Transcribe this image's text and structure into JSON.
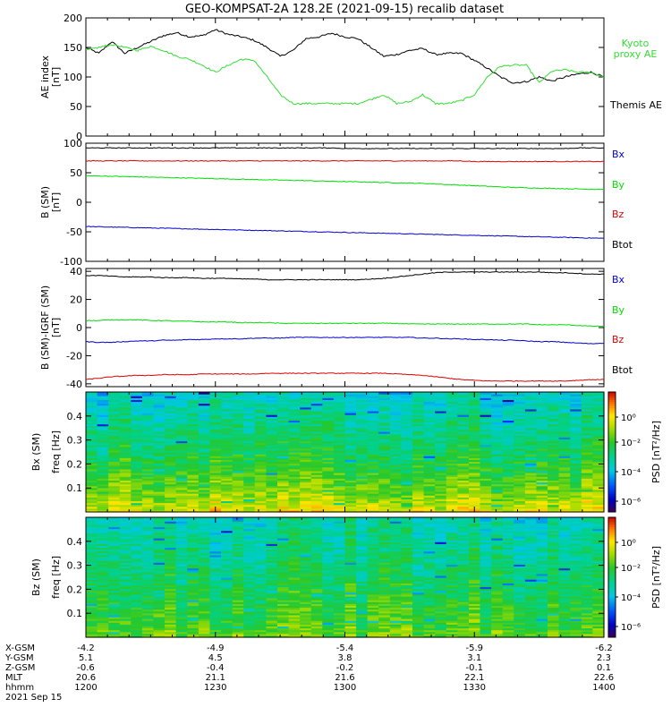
{
  "title": "GEO-KOMPSAT-2A 128.2E (2021-09-15) recalib dataset",
  "colors": {
    "black": "#000000",
    "red": "#dd0000",
    "green": "#00dd00",
    "blue": "#0000cc",
    "kyoto": "#33dd33"
  },
  "chart_data": [
    {
      "type": "line",
      "panel": "AE index",
      "ylabel": "AE index",
      "yunit": "[nT]",
      "ylim": [
        0,
        200
      ],
      "yticks": [
        "0",
        "50",
        "100",
        "150",
        "200"
      ],
      "x": [
        "12:00",
        "12:03",
        "12:06",
        "12:09",
        "12:12",
        "12:15",
        "12:18",
        "12:21",
        "12:24",
        "12:27",
        "12:30",
        "12:33",
        "12:36",
        "12:39",
        "12:42",
        "12:45",
        "12:48",
        "12:51",
        "12:54",
        "12:57",
        "13:00",
        "13:03",
        "13:06",
        "13:09",
        "13:12",
        "13:15",
        "13:18",
        "13:21",
        "13:24",
        "13:27",
        "13:30",
        "13:33",
        "13:36",
        "13:39",
        "13:42",
        "13:45",
        "13:48",
        "13:51",
        "13:54",
        "13:57",
        "14:00"
      ],
      "series": [
        {
          "name": "Themis AE",
          "color": "#000000",
          "values": [
            150,
            140,
            160,
            140,
            150,
            160,
            170,
            175,
            168,
            170,
            180,
            172,
            168,
            162,
            150,
            135,
            145,
            165,
            168,
            174,
            168,
            165,
            150,
            135,
            138,
            145,
            148,
            138,
            140,
            140,
            128,
            115,
            100,
            90,
            92,
            100,
            93,
            100,
            105,
            108,
            100
          ]
        },
        {
          "name": "Kyoto proxy AE",
          "color": "#33dd33",
          "values": [
            145,
            150,
            155,
            150,
            145,
            152,
            145,
            135,
            130,
            120,
            108,
            120,
            130,
            128,
            100,
            70,
            55,
            55,
            55,
            55,
            55,
            55,
            62,
            70,
            55,
            58,
            70,
            55,
            55,
            60,
            70,
            100,
            118,
            120,
            120,
            90,
            110,
            112,
            108,
            108,
            100
          ]
        }
      ],
      "legend": [
        "Kyoto proxy AE",
        "Themis AE"
      ]
    },
    {
      "type": "line",
      "panel": "B (SM)",
      "ylabel": "B (SM)",
      "yunit": "[nT]",
      "ylim": [
        -100,
        100
      ],
      "yticks": [
        "-100",
        "-50",
        "0",
        "50",
        "100"
      ],
      "series": [
        {
          "name": "Bx",
          "color": "#0000cc",
          "values": [
            -41,
            -41.5,
            -42,
            -42.5,
            -43,
            -43.5,
            -44,
            -44.5,
            -45,
            -45.5,
            -46,
            -46.5,
            -47,
            -47.5,
            -48,
            -48.5,
            -49,
            -49.5,
            -50,
            -50.5,
            -51,
            -51.5,
            -52,
            -52.5,
            -53,
            -53.5,
            -54,
            -54.5,
            -55,
            -55.5,
            -56,
            -56.5,
            -57,
            -57.5,
            -58,
            -58.5,
            -59,
            -59.5,
            -60,
            -60.5,
            -61
          ]
        },
        {
          "name": "By",
          "color": "#00dd00",
          "values": [
            45,
            44.5,
            44,
            43.5,
            43,
            42.5,
            42,
            41.5,
            41,
            40.5,
            40,
            39.5,
            39,
            38.5,
            38,
            37.5,
            37,
            36.5,
            36,
            35.5,
            35,
            34.5,
            34,
            33.5,
            33,
            32.5,
            32,
            31,
            30,
            29,
            28,
            27,
            26,
            25,
            24.5,
            24,
            23.5,
            23,
            22.5,
            22,
            22
          ]
        },
        {
          "name": "Bz",
          "color": "#dd0000",
          "values": [
            70,
            70,
            70,
            70,
            70,
            70,
            70,
            70,
            70,
            70,
            70,
            70,
            70,
            70,
            70,
            70,
            70,
            70,
            70,
            70,
            70,
            70,
            70,
            70,
            70,
            70,
            70,
            70,
            70,
            70,
            69,
            69,
            69,
            69,
            69,
            69,
            69,
            69,
            69,
            69,
            69
          ]
        },
        {
          "name": "Btot",
          "color": "#000000",
          "values": [
            92,
            92,
            92,
            92,
            92,
            92,
            92,
            92,
            92,
            92,
            92,
            92,
            92,
            92,
            92,
            92,
            92,
            92,
            92,
            92,
            91,
            91,
            91,
            91,
            91,
            91,
            91,
            91,
            91,
            91,
            91,
            91,
            91,
            91,
            91,
            91,
            91,
            91,
            92,
            92,
            92
          ]
        }
      ],
      "legend": [
        "Bx",
        "By",
        "Bz",
        "Btot"
      ]
    },
    {
      "type": "line",
      "panel": "B (SM)-IGRF (SM)",
      "ylabel": "B (SM)-IGRF (SM)",
      "yunit": "[nT]",
      "ylim": [
        -42,
        42
      ],
      "yticks": [
        "-40",
        "-20",
        "0",
        "20",
        "40"
      ],
      "series": [
        {
          "name": "Bx",
          "color": "#0000cc",
          "values": [
            -10,
            -10.5,
            -10.5,
            -10,
            -9.5,
            -9.5,
            -9,
            -9,
            -8.5,
            -8.5,
            -8,
            -8,
            -8,
            -7.5,
            -7.5,
            -7.5,
            -7,
            -7,
            -7,
            -7,
            -7,
            -7,
            -7,
            -7,
            -7,
            -7,
            -7.5,
            -7.5,
            -8,
            -8,
            -8.5,
            -8.5,
            -9,
            -9,
            -9.5,
            -10,
            -10,
            -10.5,
            -11,
            -11.5,
            -11
          ]
        },
        {
          "name": "By",
          "color": "#00dd00",
          "values": [
            5,
            5,
            5.5,
            5.5,
            5.5,
            5,
            5,
            4.5,
            4.5,
            4,
            4,
            4,
            3.5,
            3.5,
            3.5,
            3,
            3,
            3,
            3,
            3,
            3,
            3,
            3,
            3,
            3,
            2.5,
            2.5,
            2.5,
            2.5,
            2.5,
            2.5,
            2.5,
            2.5,
            2.5,
            2.5,
            2,
            2,
            2,
            1.5,
            1,
            1
          ]
        },
        {
          "name": "Bz",
          "color": "#dd0000",
          "values": [
            -37,
            -36,
            -35,
            -34.5,
            -34,
            -34,
            -33.5,
            -33.5,
            -33.5,
            -33,
            -33,
            -33,
            -33,
            -33,
            -32.5,
            -32.5,
            -32.5,
            -32.5,
            -32.5,
            -32.5,
            -32.5,
            -32.5,
            -32.5,
            -32.5,
            -33,
            -33.5,
            -34,
            -35,
            -36,
            -37,
            -37.5,
            -38,
            -38,
            -38,
            -38,
            -38,
            -38,
            -38,
            -37.5,
            -37,
            -37
          ]
        },
        {
          "name": "Btot",
          "color": "#000000",
          "values": [
            37,
            37,
            36.5,
            36,
            36,
            36,
            35.5,
            35.5,
            35.5,
            35,
            35,
            35,
            34.5,
            34.5,
            34,
            34,
            34,
            34,
            34,
            34,
            34,
            34,
            34.5,
            35,
            36,
            37,
            38,
            39,
            39.5,
            39.5,
            39.5,
            39.5,
            39.5,
            39.5,
            39.5,
            39.5,
            39,
            39,
            38.5,
            38,
            38
          ]
        }
      ],
      "legend": [
        "Bx",
        "By",
        "Bz",
        "Btot"
      ]
    },
    {
      "type": "heatmap",
      "panel": "Bx (SM)",
      "ylabel": "Bx (SM)",
      "ylabel2": "freq [Hz]",
      "ylim": [
        0,
        0.5
      ],
      "yticks": [
        "0.1",
        "0.2",
        "0.3",
        "0.4"
      ],
      "colorbar_label": "PSD [nT²/Hz]",
      "colorbar_ticks": [
        "10⁰",
        "10⁻²",
        "10⁻⁴",
        "10⁻⁶"
      ]
    },
    {
      "type": "heatmap",
      "panel": "Bz (SM)",
      "ylabel": "Bz (SM)",
      "ylabel2": "freq [Hz]",
      "ylim": [
        0,
        0.5
      ],
      "yticks": [
        "0.1",
        "0.2",
        "0.3",
        "0.4"
      ],
      "colorbar_label": "PSD [nT²/Hz]",
      "colorbar_ticks": [
        "10⁰",
        "10⁻²",
        "10⁻⁴",
        "10⁻⁶"
      ]
    }
  ],
  "orbit_table": {
    "row_labels": [
      "X-GSM",
      "Y-GSM",
      "Z-GSM",
      "MLT",
      "hhmm"
    ],
    "columns": [
      [
        "-4.2",
        "5.1",
        "-0.6",
        "20.6",
        "1200"
      ],
      [
        "-4.9",
        "4.5",
        "-0.4",
        "21.1",
        "1230"
      ],
      [
        "-5.4",
        "3.8",
        "-0.2",
        "21.6",
        "1300"
      ],
      [
        "-5.9",
        "3.1",
        "-0.1",
        "22.1",
        "1330"
      ],
      [
        "-6.2",
        "2.3",
        "0.1",
        "22.6",
        "1400"
      ]
    ],
    "date": "2021 Sep 15"
  }
}
